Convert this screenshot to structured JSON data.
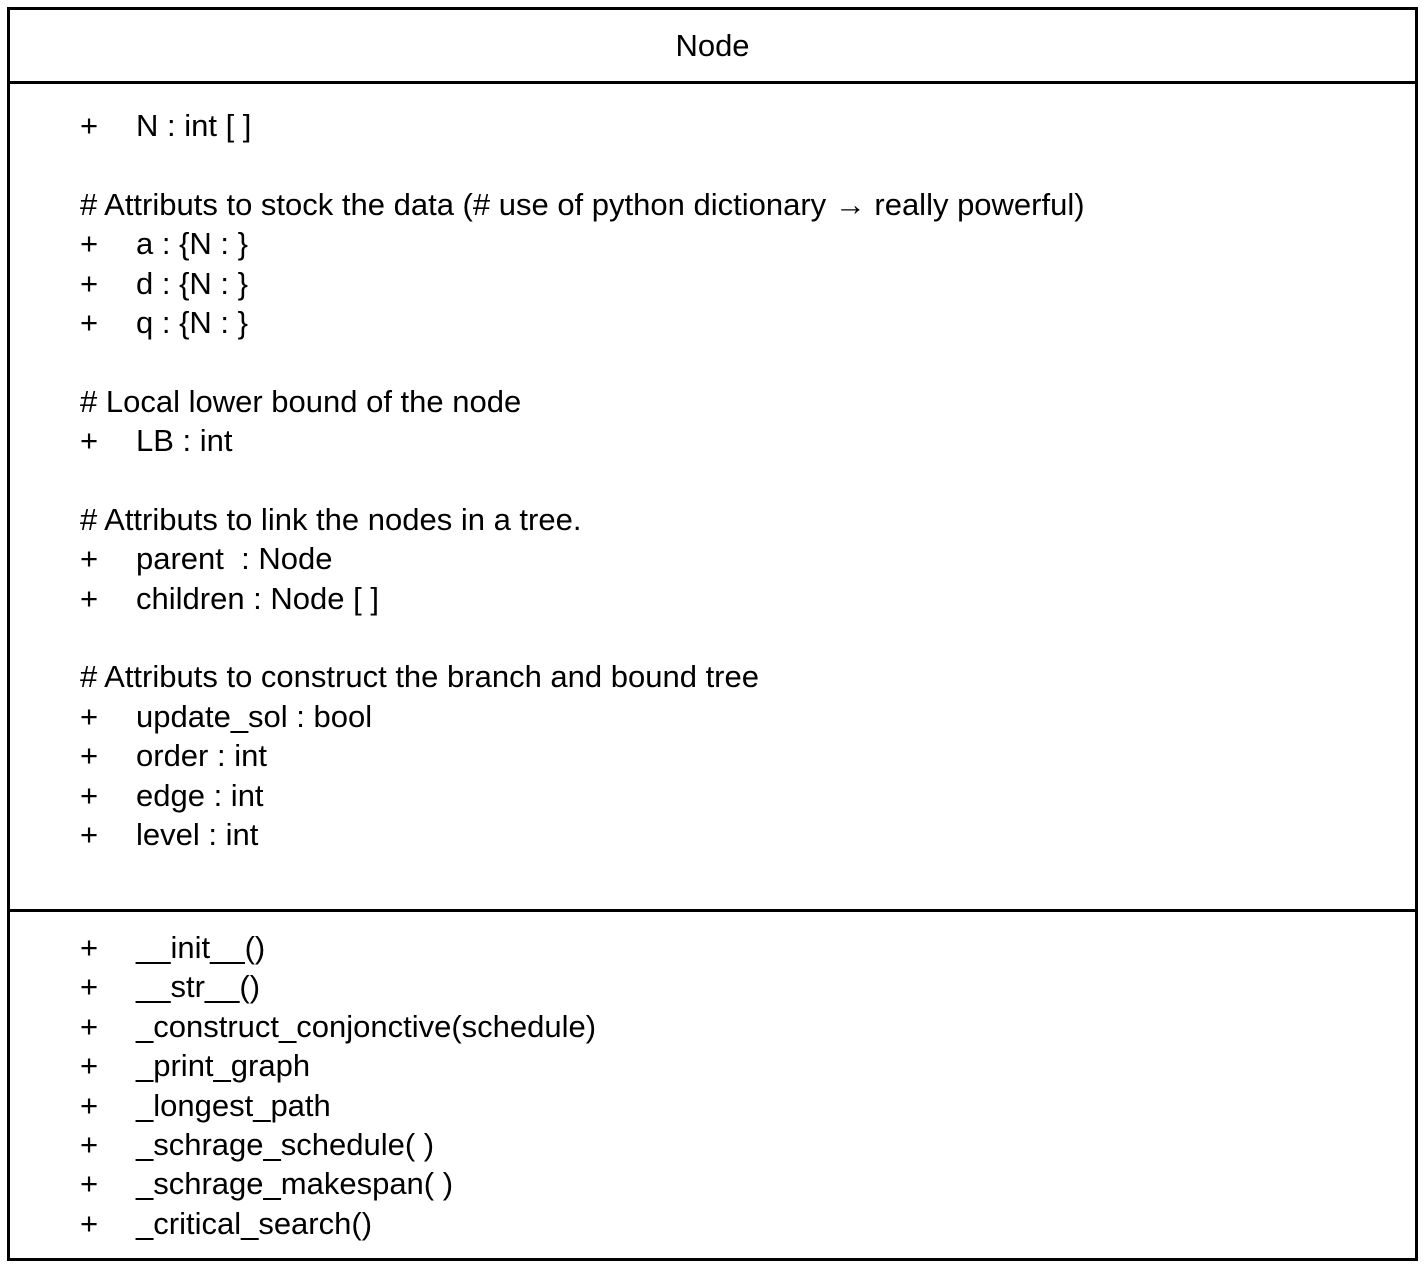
{
  "class_name": "Node",
  "attributes": [
    {
      "type": "member",
      "vis": "+",
      "text": "N : int [ ]"
    },
    {
      "type": "comment",
      "text": "# Attributs to stock the data (# use of python dictionary → really powerful)"
    },
    {
      "type": "member",
      "vis": "+",
      "text": "a : {N : }"
    },
    {
      "type": "member",
      "vis": "+",
      "text": "d : {N : }"
    },
    {
      "type": "member",
      "vis": "+",
      "text": "q : {N : }"
    },
    {
      "type": "comment",
      "text": "# Local lower bound of the node"
    },
    {
      "type": "member",
      "vis": "+",
      "text": "LB : int"
    },
    {
      "type": "comment",
      "text": "# Attributs to link the nodes in a tree."
    },
    {
      "type": "member",
      "vis": "+",
      "text": "parent  : Node"
    },
    {
      "type": "member",
      "vis": "+",
      "text": "children : Node [ ]"
    },
    {
      "type": "comment",
      "text": "# Attributs to construct the branch and bound tree"
    },
    {
      "type": "member",
      "vis": "+",
      "text": "update_sol : bool"
    },
    {
      "type": "member",
      "vis": "+",
      "text": "order : int"
    },
    {
      "type": "member",
      "vis": "+",
      "text": "edge : int"
    },
    {
      "type": "member",
      "vis": "+",
      "text": "level : int"
    }
  ],
  "methods": [
    {
      "vis": "+",
      "text": "__init__()"
    },
    {
      "vis": "+",
      "text": "__str__()"
    },
    {
      "vis": "+",
      "text": "_construct_conjonctive(schedule)"
    },
    {
      "vis": "+",
      "text": "_print_graph"
    },
    {
      "vis": "+",
      "text": "_longest_path"
    },
    {
      "vis": "+",
      "text": "_schrage_schedule( )"
    },
    {
      "vis": "+",
      "text": "_schrage_makespan( )"
    },
    {
      "vis": "+",
      "text": "_critical_search()"
    }
  ]
}
